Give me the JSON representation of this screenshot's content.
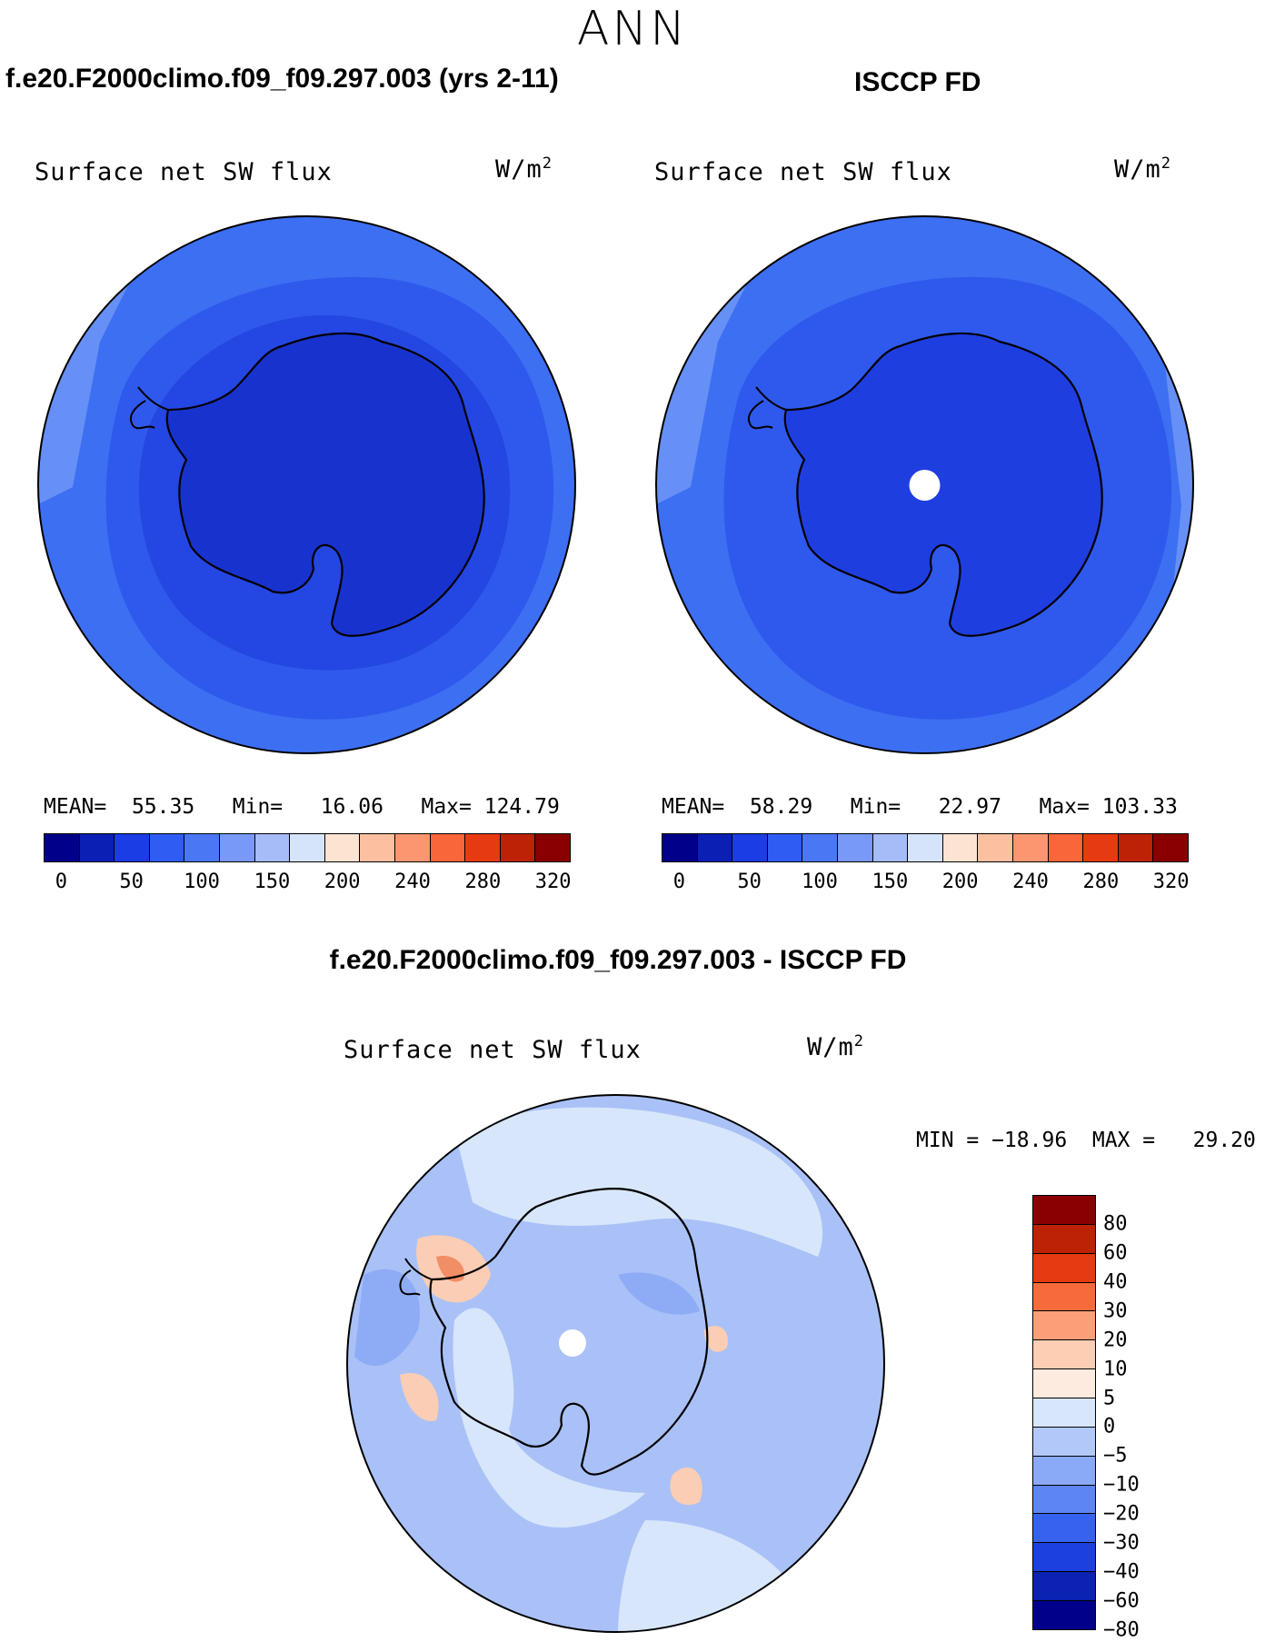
{
  "season": "ANN",
  "panels": [
    {
      "title": "f.e20.F2000climo.f09_f09.297.003 (yrs 2-11)",
      "variable": "Surface net SW flux",
      "units": "W/m",
      "units_sup": "2",
      "mean_label": "MEAN=",
      "mean": "55.35",
      "min_label": "Min=",
      "min": "16.06",
      "max_label": "Max=",
      "max": "124.79"
    },
    {
      "title": "ISCCP FD",
      "variable": "Surface net SW flux",
      "units": "W/m",
      "units_sup": "2",
      "mean_label": "MEAN=",
      "mean": "58.29",
      "min_label": "Min=",
      "min": "22.97",
      "max_label": "Max=",
      "max": "103.33"
    }
  ],
  "colorbar": {
    "colors": [
      "#00008b",
      "#0a1fb4",
      "#1a3de6",
      "#2f5cf2",
      "#4a78f5",
      "#7899f7",
      "#a6bcf8",
      "#d6e4fb",
      "#fde4d2",
      "#fcc0a0",
      "#fc9670",
      "#f9663a",
      "#e63b10",
      "#bd2204",
      "#8a0000"
    ],
    "ticks": [
      "0",
      "50",
      "100",
      "150",
      "200",
      "240",
      "280",
      "320"
    ]
  },
  "diff": {
    "title": "f.e20.F2000climo.f09_f09.297.003 - ISCCP FD",
    "variable": "Surface net SW flux",
    "units": "W/m",
    "units_sup": "2",
    "minmax": "MIN = −18.96  MAX =   29.20",
    "colors": [
      "#8a0000",
      "#bd2204",
      "#e63b10",
      "#f76a3c",
      "#fb9f78",
      "#fdcdb4",
      "#fdebdf",
      "#d8e6fb",
      "#b2c8f8",
      "#8aa9f6",
      "#5d85f3",
      "#3762f0",
      "#1c3fe0",
      "#0b22b2",
      "#00008b"
    ],
    "ticks": [
      "80",
      "60",
      "40",
      "30",
      "20",
      "10",
      "5",
      "0",
      "−5",
      "−10",
      "−20",
      "−30",
      "−40",
      "−60",
      "−80"
    ]
  },
  "map_colors": {
    "ocean_outer": "#3d6ff3",
    "ocean_light": "#6690f5",
    "ocean_mid": "#2f59ec",
    "ice_zone": "#2446e2",
    "continent_model": "#1833cd",
    "continent_obs": "#1f3ee0",
    "diff_base": "#a9c1f7",
    "diff_light": "#d7e6fb",
    "diff_mid": "#8eacf6",
    "diff_pos": "#fbcdb4",
    "diff_pos_strong": "#f28e66"
  }
}
